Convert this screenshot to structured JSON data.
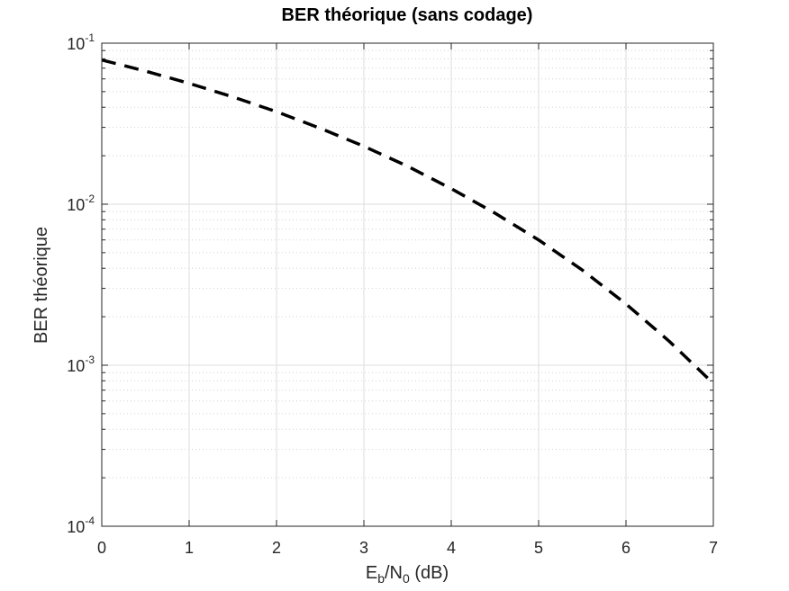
{
  "chart_data": {
    "type": "line",
    "title": "BER théorique (sans codage)",
    "xlabel": {
      "base1": "E",
      "sub1": "b",
      "mid": "/N",
      "sub2": "0",
      "tail": " (dB)"
    },
    "ylabel": "BER théorique",
    "xlim": [
      0,
      7
    ],
    "ylim": [
      0.0001,
      0.1
    ],
    "yscale": "log",
    "grid": true,
    "x_ticks": [
      "0",
      "1",
      "2",
      "3",
      "4",
      "5",
      "6",
      "7"
    ],
    "y_ticks": [
      {
        "base": "10",
        "exp": "-1",
        "value": 0.1
      },
      {
        "base": "10",
        "exp": "-2",
        "value": 0.01
      },
      {
        "base": "10",
        "exp": "-3",
        "value": 0.001
      },
      {
        "base": "10",
        "exp": "-4",
        "value": 0.0001
      }
    ],
    "series": [
      {
        "line_style": "dashed",
        "color": "#000000",
        "x": [
          0,
          0.5,
          1,
          1.5,
          2,
          2.5,
          3,
          3.5,
          4,
          4.5,
          5,
          5.5,
          6,
          6.5,
          7
        ],
        "y": [
          0.0786,
          0.0671,
          0.0563,
          0.0464,
          0.0375,
          0.0296,
          0.0229,
          0.0172,
          0.0125,
          0.0088,
          0.006,
          0.0039,
          0.0024,
          0.0014,
          0.00077
        ]
      }
    ]
  }
}
